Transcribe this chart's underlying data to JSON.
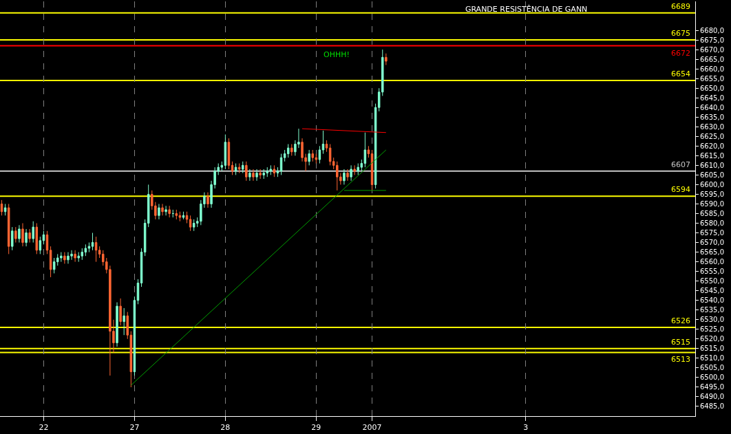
{
  "chart_data": {
    "type": "candlestick",
    "title": "GRANDE RESISTÊNCIA DE GANN",
    "categories": [
      null,
      null,
      null,
      null,
      null,
      null,
      null,
      null,
      null,
      null,
      null,
      null,
      "22",
      null,
      null,
      null,
      null,
      null,
      null,
      null,
      null,
      null,
      null,
      null,
      null,
      null,
      null,
      null,
      null,
      null,
      null,
      null,
      null,
      null,
      null,
      null,
      null,
      null,
      "27",
      null,
      null,
      null,
      null,
      null,
      null,
      null,
      null,
      null,
      null,
      null,
      null,
      null,
      null,
      null,
      null,
      null,
      null,
      null,
      null,
      null,
      null,
      null,
      null,
      null,
      "28",
      null,
      null,
      null,
      null,
      null,
      null,
      null,
      null,
      null,
      null,
      null,
      null,
      null,
      null,
      null,
      null,
      null,
      null,
      null,
      null,
      null,
      null,
      null,
      null,
      null,
      "29",
      null,
      null,
      null,
      null,
      null,
      null,
      null,
      null,
      null,
      null,
      null,
      null,
      null,
      null,
      null,
      "2007",
      null,
      null,
      null,
      null,
      null,
      null,
      null,
      null,
      null,
      null,
      null,
      null,
      null,
      null,
      null,
      null,
      null,
      null,
      null,
      null,
      null,
      null,
      null,
      null,
      null,
      null,
      null,
      null,
      null,
      null,
      null,
      null,
      null,
      null,
      null,
      null,
      null,
      null,
      null,
      null,
      null,
      null,
      null,
      "3",
      null,
      null,
      null,
      null,
      null,
      null,
      null,
      null,
      null,
      null,
      null,
      null,
      null,
      null,
      null,
      null,
      null,
      null,
      null,
      null,
      null,
      null,
      null,
      null,
      null,
      null,
      null,
      null,
      null,
      null,
      null,
      null,
      null,
      null,
      null,
      null,
      null,
      null,
      null,
      null,
      null,
      null,
      null,
      null,
      null,
      null,
      null,
      null
    ],
    "ylim": [
      6480,
      6695
    ],
    "yticks": [
      {
        "value": 6485,
        "label": "6485,0"
      },
      {
        "value": 6490,
        "label": "6490,0"
      },
      {
        "value": 6495,
        "label": "6495,0"
      },
      {
        "value": 6500,
        "label": "6500,0"
      },
      {
        "value": 6505,
        "label": "6505,0"
      },
      {
        "value": 6510,
        "label": "6510,0"
      },
      {
        "value": 6515,
        "label": "6515,0"
      },
      {
        "value": 6520,
        "label": "6520,0"
      },
      {
        "value": 6525,
        "label": "6525,0"
      },
      {
        "value": 6530,
        "label": "6530,0"
      },
      {
        "value": 6535,
        "label": "6535,0"
      },
      {
        "value": 6540,
        "label": "6540,0"
      },
      {
        "value": 6545,
        "label": "6545,0"
      },
      {
        "value": 6550,
        "label": "6550,0"
      },
      {
        "value": 6555,
        "label": "6555,0"
      },
      {
        "value": 6560,
        "label": "6560,0"
      },
      {
        "value": 6565,
        "label": "6565,0"
      },
      {
        "value": 6570,
        "label": "6570,0"
      },
      {
        "value": 6575,
        "label": "6575,0"
      },
      {
        "value": 6580,
        "label": "6580,0"
      },
      {
        "value": 6585,
        "label": "6585,0"
      },
      {
        "value": 6590,
        "label": "6590,0"
      },
      {
        "value": 6595,
        "label": "6595,0"
      },
      {
        "value": 6600,
        "label": "6600,0"
      },
      {
        "value": 6605,
        "label": "6605,0"
      },
      {
        "value": 6610,
        "label": "6610,0"
      },
      {
        "value": 6615,
        "label": "6615,0"
      },
      {
        "value": 6620,
        "label": "6620,0"
      },
      {
        "value": 6625,
        "label": "6625,0"
      },
      {
        "value": 6630,
        "label": "6630,0"
      },
      {
        "value": 6635,
        "label": "6635,0"
      },
      {
        "value": 6640,
        "label": "6640,0"
      },
      {
        "value": 6645,
        "label": "6645,0"
      },
      {
        "value": 6650,
        "label": "6650,0"
      },
      {
        "value": 6655,
        "label": "6655,0"
      },
      {
        "value": 6660,
        "label": "6660,0"
      },
      {
        "value": 6665,
        "label": "6665,0"
      },
      {
        "value": 6670,
        "label": "6670,0"
      },
      {
        "value": 6675,
        "label": "6675,0"
      },
      {
        "value": 6680,
        "label": "6680,0"
      }
    ],
    "grid": "x",
    "ref_lines": [
      {
        "axis": "y",
        "value": 6689,
        "label": "6689",
        "color": "#ffff00"
      },
      {
        "axis": "y",
        "value": 6675,
        "label": "6675",
        "color": "#ffff00"
      },
      {
        "axis": "y",
        "value": 6672,
        "label": "6672",
        "color": "#ff0000"
      },
      {
        "axis": "y",
        "value": 6654,
        "label": "6654",
        "color": "#ffff00"
      },
      {
        "axis": "y",
        "value": 6607,
        "label": "6607",
        "color": "#c8c8c8"
      },
      {
        "axis": "y",
        "value": 6594,
        "label": "6594",
        "color": "#ffff00"
      },
      {
        "axis": "y",
        "value": 6526,
        "label": "6526",
        "color": "#ffff00"
      },
      {
        "axis": "y",
        "value": 6515,
        "label": "6515",
        "color": "#ffff00"
      },
      {
        "axis": "y",
        "value": 6513,
        "label": "6513",
        "color": "#ffff00"
      }
    ],
    "annotations": [
      "OHHH!"
    ],
    "series": [
      {
        "type": "line",
        "color": "#00a000",
        "values": [
          null,
          null,
          null,
          null,
          null,
          null,
          null,
          null,
          null,
          null,
          null,
          null,
          null,
          null,
          null,
          null,
          null,
          null,
          null,
          null,
          null,
          null,
          null,
          null,
          null,
          null,
          null,
          null,
          null,
          null,
          null,
          null,
          null,
          null,
          null,
          null,
          null,
          6496,
          null,
          null,
          null,
          null,
          null,
          null,
          null,
          null,
          null,
          null,
          null,
          null,
          null,
          null,
          null,
          null,
          null,
          null,
          null,
          null,
          null,
          null,
          null,
          null,
          null,
          null,
          null,
          null,
          null,
          null,
          null,
          null,
          null,
          null,
          null,
          null,
          null,
          null,
          null,
          null,
          null,
          null,
          null,
          null,
          null,
          null,
          null,
          null,
          null,
          null,
          null,
          null,
          null,
          null,
          null,
          null,
          null,
          null,
          null,
          null,
          null,
          null,
          null,
          null,
          null,
          null,
          null,
          null,
          null,
          null,
          null,
          null,
          6618,
          null,
          null,
          null,
          null,
          null,
          null,
          null,
          null,
          null,
          null,
          null,
          null,
          null,
          null,
          null,
          null,
          null,
          null,
          null,
          null,
          null,
          null,
          null,
          null,
          null,
          null,
          null,
          null,
          null,
          null,
          null,
          null,
          null,
          null,
          null,
          null,
          null,
          null,
          null,
          null,
          null,
          null,
          null,
          null,
          null,
          null,
          null,
          null,
          null,
          null,
          null,
          null,
          null,
          null,
          null,
          null,
          null,
          null,
          null,
          null,
          null,
          null,
          null,
          null,
          null,
          null,
          null,
          null,
          null,
          null,
          null,
          null,
          null,
          null,
          null,
          null,
          null,
          null,
          null,
          null,
          null,
          null,
          null,
          null,
          null,
          null,
          null,
          null
        ]
      },
      {
        "type": "line",
        "color": "#ff0000",
        "values": [
          null,
          null,
          null,
          null,
          null,
          null,
          null,
          null,
          null,
          null,
          null,
          null,
          null,
          null,
          null,
          null,
          null,
          null,
          null,
          null,
          null,
          null,
          null,
          null,
          null,
          null,
          null,
          null,
          null,
          null,
          null,
          null,
          null,
          null,
          null,
          null,
          null,
          null,
          null,
          null,
          null,
          null,
          null,
          null,
          null,
          null,
          null,
          null,
          null,
          null,
          null,
          null,
          null,
          null,
          null,
          null,
          null,
          null,
          null,
          null,
          null,
          null,
          null,
          null,
          null,
          null,
          null,
          null,
          null,
          null,
          null,
          null,
          null,
          null,
          null,
          null,
          null,
          null,
          null,
          null,
          null,
          null,
          null,
          null,
          null,
          null,
          6629,
          null,
          null,
          null,
          null,
          null,
          null,
          null,
          null,
          null,
          null,
          null,
          null,
          null,
          null,
          null,
          null,
          null,
          null,
          null,
          null,
          null,
          null,
          null,
          6627,
          null,
          null,
          null,
          null,
          null,
          null,
          null,
          null,
          null,
          null,
          null,
          null,
          null,
          null,
          null,
          null,
          null,
          null,
          null,
          null,
          null,
          null,
          null,
          null,
          null,
          null,
          null,
          null,
          null,
          null,
          null,
          null,
          null,
          null,
          null,
          null,
          null,
          null,
          null,
          null,
          null,
          null,
          null,
          null,
          null,
          null,
          null,
          null,
          null,
          null,
          null,
          null,
          null,
          null,
          null,
          null,
          null,
          null,
          null,
          null,
          null,
          null,
          null,
          null,
          null,
          null,
          null,
          null,
          null,
          null,
          null,
          null,
          null,
          null,
          null,
          null,
          null,
          null,
          null,
          null,
          null,
          null,
          null,
          null,
          null,
          null,
          null,
          null
        ]
      },
      {
        "type": "line",
        "color": "#00a000",
        "values": [
          null,
          null,
          null,
          null,
          null,
          null,
          null,
          null,
          null,
          null,
          null,
          null,
          null,
          null,
          null,
          null,
          null,
          null,
          null,
          null,
          null,
          null,
          null,
          null,
          null,
          null,
          null,
          null,
          null,
          null,
          null,
          null,
          null,
          null,
          null,
          null,
          null,
          null,
          null,
          null,
          null,
          null,
          null,
          null,
          null,
          null,
          null,
          null,
          null,
          null,
          null,
          null,
          null,
          null,
          null,
          null,
          null,
          null,
          null,
          null,
          null,
          null,
          null,
          null,
          null,
          null,
          null,
          null,
          null,
          null,
          null,
          null,
          null,
          null,
          null,
          null,
          null,
          null,
          null,
          null,
          null,
          null,
          null,
          null,
          null,
          null,
          null,
          null,
          null,
          null,
          null,
          null,
          null,
          null,
          null,
          null,
          null,
          null,
          6597,
          null,
          null,
          null,
          null,
          null,
          null,
          null,
          null,
          null,
          null,
          null,
          6597,
          null,
          null,
          null,
          null,
          null,
          null,
          null,
          null,
          null,
          null,
          null,
          null,
          null,
          null,
          null,
          null,
          null,
          null,
          null,
          null,
          null,
          null,
          null,
          null,
          null,
          null,
          null,
          null,
          null,
          null,
          null,
          null,
          null,
          null,
          null,
          null,
          null,
          null,
          null,
          null,
          null,
          null,
          null,
          null,
          null,
          null,
          null,
          null,
          null,
          null,
          null,
          null,
          null,
          null,
          null,
          null,
          null,
          null,
          null,
          null,
          null,
          null,
          null,
          null,
          null,
          null,
          null,
          null,
          null,
          null,
          null,
          null,
          null,
          null,
          null,
          null,
          null,
          null,
          null,
          null,
          null,
          null,
          null,
          null,
          null,
          null,
          null,
          null
        ]
      },
      {
        "colors": [
          "#ff6633",
          "#80ffd0",
          "#ff6633",
          "#80ffd0",
          "#ff6633",
          "#80ffd0",
          "#ff6633",
          "#80ffd0",
          "#ff6633",
          "#80ffd0",
          "#ff6633",
          "#80ffd0",
          "#80ffd0",
          "#ff6633",
          "#ff6633",
          "#80ffd0",
          "#80ffd0",
          "#80ffd0",
          "#ff6633",
          "#80ffd0",
          "#80ffd0",
          "#ff6633",
          "#80ffd0",
          "#80ffd0",
          "#80ffd0",
          "#80ffd0",
          "#80ffd0",
          "#ff6633",
          "#ff6633",
          "#ff6633",
          "#ff6633",
          "#ff6633",
          "#ff6633",
          "#80ffd0",
          "#ff6633",
          "#80ffd0",
          "#ff6633",
          "#ff6633",
          "#80ffd0",
          "#80ffd0",
          "#80ffd0",
          "#80ffd0",
          "#80ffd0",
          "#ff6633",
          "#ff6633",
          "#80ffd0",
          "#ff6633",
          "#80ffd0",
          "#ff6633",
          "#80ffd0",
          "#ff6633",
          "#ff6633",
          "#80ffd0",
          "#ff6633",
          "#ff6633",
          "#80ffd0",
          "#80ffd0",
          "#80ffd0",
          "#80ffd0",
          "#ff6633",
          "#80ffd0",
          "#80ffd0",
          "#80ffd0",
          "#80ffd0",
          "#80ffd0",
          "#ff6633",
          "#ff6633",
          "#80ffd0",
          "#ff6633",
          "#80ffd0",
          "#ff6633",
          "#80ffd0",
          "#ff6633",
          "#80ffd0",
          "#ff6633",
          "#80ffd0",
          "#80ffd0",
          "#80ffd0",
          "#ff6633",
          "#80ffd0",
          "#80ffd0",
          "#80ffd0",
          "#80ffd0",
          "#ff6633",
          "#80ffd0",
          "#80ffd0",
          "#ff6633",
          "#ff6633",
          "#80ffd0",
          "#ff6633",
          "#ff6633",
          "#80ffd0",
          "#80ffd0",
          "#ff6633",
          "#ff6633",
          "#ff6633",
          "#ff6633",
          "#ff6633",
          "#80ffd0",
          "#ff6633",
          "#80ffd0",
          "#ff6633",
          "#80ffd0",
          "#80ffd0",
          "#80ffd0",
          "#ff6633",
          "#ff6633",
          "#80ffd0",
          "#80ffd0",
          "#80ffd0",
          "#ff6633",
          null,
          null,
          null,
          null,
          null,
          null,
          null,
          null,
          null,
          null,
          null,
          null,
          null,
          null,
          null,
          null,
          null,
          null,
          null,
          null,
          null,
          null,
          null,
          null,
          null,
          null,
          null,
          null,
          null,
          null,
          null,
          null,
          null,
          null,
          null,
          null,
          null,
          null,
          null,
          null,
          null,
          null,
          null,
          null,
          null,
          null,
          null,
          null,
          null,
          null,
          null,
          null,
          null,
          null,
          null,
          null,
          null,
          null,
          null,
          null,
          null,
          null,
          null,
          null,
          null,
          null,
          null,
          null,
          null,
          null,
          null,
          null,
          null,
          null,
          null,
          null,
          null,
          null,
          null,
          null,
          null,
          null,
          null,
          null,
          null,
          null,
          null,
          null
        ],
        "ohlc": [
          [
            6590,
            6592,
            6584,
            6586
          ],
          [
            6586,
            6590,
            6584,
            6588
          ],
          [
            6588,
            6590,
            6564,
            6568
          ],
          [
            6568,
            6578,
            6566,
            6576
          ],
          [
            6576,
            6578,
            6570,
            6572
          ],
          [
            6572,
            6579,
            6570,
            6577
          ],
          [
            6577,
            6580,
            6568,
            6570
          ],
          [
            6570,
            6577,
            6568,
            6575
          ],
          [
            6575,
            6577,
            6570,
            6572
          ],
          [
            6572,
            6581,
            6570,
            6578
          ],
          [
            6578,
            6580,
            6564,
            6566
          ],
          [
            6566,
            6573,
            6564,
            6571
          ],
          [
            6571,
            6576,
            6569,
            6574
          ],
          [
            6574,
            6576,
            6564,
            6566
          ],
          [
            6566,
            6568,
            6552,
            6556
          ],
          [
            6556,
            6562,
            6554,
            6560
          ],
          [
            6560,
            6564,
            6558,
            6562
          ],
          [
            6562,
            6565,
            6560,
            6563
          ],
          [
            6563,
            6565,
            6559,
            6561
          ],
          [
            6561,
            6565,
            6559,
            6563
          ],
          [
            6563,
            6566,
            6561,
            6564
          ],
          [
            6564,
            6566,
            6560,
            6562
          ],
          [
            6562,
            6565,
            6560,
            6563
          ],
          [
            6563,
            6567,
            6561,
            6565
          ],
          [
            6565,
            6569,
            6563,
            6567
          ],
          [
            6567,
            6570,
            6565,
            6568
          ],
          [
            6568,
            6575,
            6566,
            6570
          ],
          [
            6570,
            6573,
            6560,
            6566
          ],
          [
            6566,
            6568,
            6562,
            6564
          ],
          [
            6564,
            6566,
            6558,
            6560
          ],
          [
            6560,
            6562,
            6554,
            6556
          ],
          [
            6556,
            6558,
            6501,
            6524
          ],
          [
            6524,
            6530,
            6513,
            6518
          ],
          [
            6518,
            6539,
            6516,
            6537
          ],
          [
            6537,
            6541,
            6527,
            6529
          ],
          [
            6529,
            6536,
            6522,
            6532
          ],
          [
            6532,
            6534,
            6520,
            6522
          ],
          [
            6522,
            6524,
            6495,
            6503
          ],
          [
            6503,
            6542,
            6501,
            6540
          ],
          [
            6540,
            6551,
            6538,
            6549
          ],
          [
            6549,
            6567,
            6547,
            6565
          ],
          [
            6565,
            6582,
            6563,
            6580
          ],
          [
            6580,
            6600,
            6578,
            6595
          ],
          [
            6595,
            6597,
            6587,
            6589
          ],
          [
            6589,
            6591,
            6582,
            6584
          ],
          [
            6584,
            6590,
            6582,
            6588
          ],
          [
            6588,
            6590,
            6584,
            6586
          ],
          [
            6586,
            6589,
            6584,
            6587
          ],
          [
            6587,
            6589,
            6583,
            6585
          ],
          [
            6585,
            6587,
            6583,
            6585
          ],
          [
            6585,
            6587,
            6582,
            6584
          ],
          [
            6584,
            6586,
            6581,
            6583
          ],
          [
            6583,
            6586,
            6582,
            6584
          ],
          [
            6584,
            6586,
            6580,
            6582
          ],
          [
            6582,
            6584,
            6576,
            6578
          ],
          [
            6578,
            6582,
            6576,
            6580
          ],
          [
            6580,
            6583,
            6578,
            6581
          ],
          [
            6581,
            6592,
            6579,
            6590
          ],
          [
            6590,
            6596,
            6588,
            6594
          ],
          [
            6594,
            6596,
            6588,
            6590
          ],
          [
            6590,
            6602,
            6588,
            6600
          ],
          [
            6600,
            6609,
            6598,
            6607
          ],
          [
            6607,
            6611,
            6605,
            6609
          ],
          [
            6609,
            6612,
            6607,
            6610
          ],
          [
            6610,
            6626,
            6608,
            6622
          ],
          [
            6622,
            6624,
            6608,
            6610
          ],
          [
            6610,
            6612,
            6605,
            6607
          ],
          [
            6607,
            6611,
            6605,
            6609
          ],
          [
            6609,
            6611,
            6606,
            6608
          ],
          [
            6608,
            6612,
            6606,
            6610
          ],
          [
            6610,
            6612,
            6602,
            6604
          ],
          [
            6604,
            6608,
            6602,
            6606
          ],
          [
            6606,
            6608,
            6602,
            6604
          ],
          [
            6604,
            6608,
            6602,
            6606
          ],
          [
            6606,
            6608,
            6603,
            6605
          ],
          [
            6605,
            6608,
            6603,
            6606
          ],
          [
            6606,
            6609,
            6604,
            6607
          ],
          [
            6607,
            6610,
            6605,
            6608
          ],
          [
            6608,
            6610,
            6604,
            6606
          ],
          [
            6606,
            6609,
            6604,
            6607
          ],
          [
            6607,
            6616,
            6605,
            6614
          ],
          [
            6614,
            6618,
            6612,
            6616
          ],
          [
            6616,
            6621,
            6614,
            6619
          ],
          [
            6619,
            6621,
            6615,
            6617
          ],
          [
            6617,
            6623,
            6615,
            6621
          ],
          [
            6621,
            6629,
            6619,
            6622
          ],
          [
            6622,
            6624,
            6612,
            6614
          ],
          [
            6614,
            6616,
            6607,
            6612
          ],
          [
            6612,
            6618,
            6610,
            6616
          ],
          [
            6616,
            6618,
            6612,
            6614
          ],
          [
            6614,
            6616,
            6611,
            6613
          ],
          [
            6613,
            6620,
            6611,
            6618
          ],
          [
            6618,
            6628,
            6616,
            6621
          ],
          [
            6621,
            6623,
            6617,
            6619
          ],
          [
            6619,
            6621,
            6610,
            6612
          ],
          [
            6612,
            6614,
            6608,
            6610
          ],
          [
            6610,
            6612,
            6597,
            6604
          ],
          [
            6604,
            6606,
            6600,
            6602
          ],
          [
            6602,
            6608,
            6600,
            6606
          ],
          [
            6606,
            6608,
            6602,
            6604
          ],
          [
            6604,
            6610,
            6602,
            6608
          ],
          [
            6608,
            6610,
            6605,
            6607
          ],
          [
            6607,
            6611,
            6605,
            6609
          ],
          [
            6609,
            6613,
            6607,
            6611
          ],
          [
            6611,
            6627,
            6609,
            6618
          ],
          [
            6618,
            6620,
            6614,
            6616
          ],
          [
            6616,
            6618,
            6597,
            6600
          ],
          [
            6600,
            6642,
            6598,
            6640
          ],
          [
            6640,
            6650,
            6638,
            6648
          ],
          [
            6648,
            6670,
            6646,
            6666
          ],
          [
            6666,
            6668,
            6662,
            6664
          ],
          null,
          null,
          null,
          null,
          null,
          null,
          null,
          null,
          null,
          null,
          null,
          null,
          null,
          null,
          null,
          null,
          null,
          null,
          null,
          null,
          null,
          null,
          null,
          null,
          null,
          null,
          null,
          null,
          null,
          null,
          null,
          null,
          null,
          null,
          null,
          null,
          null,
          null,
          null,
          null,
          null,
          null,
          null,
          null,
          null,
          null,
          null,
          null,
          null,
          null,
          null,
          null,
          null,
          null,
          null,
          null,
          null,
          null,
          null,
          null,
          null,
          null,
          null,
          null,
          null,
          null,
          null,
          null,
          null,
          null,
          null,
          null,
          null,
          null,
          null,
          null,
          null,
          null,
          null,
          null,
          null,
          null,
          null,
          null,
          null,
          null,
          null,
          null
        ]
      }
    ]
  }
}
